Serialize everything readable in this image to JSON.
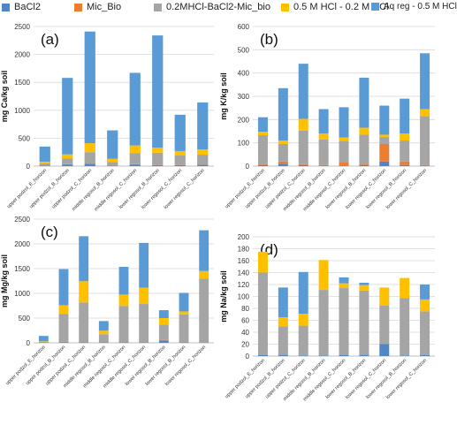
{
  "legend": [
    {
      "name": "BaCl2",
      "color": "#4e86c6"
    },
    {
      "name": "Mic_Bio",
      "color": "#ed7d31"
    },
    {
      "name": "0.2MHCl-BaCl2-Mic_bio",
      "color": "#a5a5a5"
    },
    {
      "name": "0.5 M HCl  - 0.2 M HCl",
      "color": "#ffc000"
    },
    {
      "name": "Aq reg  - 0.5 M HCl",
      "color": "#5b9bd5"
    }
  ],
  "chart_data": [
    {
      "type": "bar",
      "stacked": true,
      "panel_label": "(a)",
      "ylabel": "mg Ca/kg soil",
      "ylim": [
        0,
        2500
      ],
      "yticks": [
        0,
        500,
        1000,
        1500,
        2000,
        2500
      ],
      "categories": [
        "upper podzol_E_horizon",
        "upper podzol_B_horizon",
        "upper podzol_C_horizon",
        "middle regosol_B_horizon",
        "middle regosol_C_horizon",
        "lower regosol_B_horizon",
        "lower regosol_C_horizon",
        "lower regosol_C_horizon"
      ],
      "series": [
        {
          "name": "BaCl2",
          "values": [
            10,
            30,
            40,
            10,
            30,
            20,
            20,
            25
          ]
        },
        {
          "name": "Mic_Bio",
          "values": [
            2,
            5,
            5,
            3,
            5,
            5,
            5,
            5
          ]
        },
        {
          "name": "0.2MHCl-BaCl2-Mic_bio",
          "values": [
            38,
            105,
            205,
            60,
            195,
            215,
            165,
            175
          ]
        },
        {
          "name": "0.5 M HCl  - 0.2 M HCl",
          "values": [
            30,
            70,
            160,
            57,
            140,
            90,
            80,
            95
          ]
        },
        {
          "name": "Aq reg  - 0.5 M HCl",
          "values": [
            270,
            1370,
            2000,
            510,
            1300,
            2010,
            650,
            840
          ]
        }
      ]
    },
    {
      "type": "bar",
      "stacked": true,
      "panel_label": "(b)",
      "ylabel": "mg K/kg soil",
      "ylim": [
        0,
        600
      ],
      "yticks": [
        0,
        100,
        200,
        300,
        400,
        500,
        600
      ],
      "categories": [
        "upper podzol_E_horizon",
        "upper podzol_B_horizon",
        "upper podzol_C_horizon",
        "middle regosol_B_horizon",
        "middle regosol_C_horizon",
        "lower regosol_B_horizon",
        "lower regosol_C_horizon",
        "lower regosol_B_horizon",
        "lower regosol_C_horizon"
      ],
      "series": [
        {
          "name": "BaCl2",
          "values": [
            5,
            10,
            5,
            3,
            3,
            5,
            20,
            5,
            3
          ]
        },
        {
          "name": "Mic_Bio",
          "values": [
            3,
            10,
            3,
            2,
            15,
            5,
            75,
            15,
            2
          ]
        },
        {
          "name": "0.2MHCl-BaCl2-Mic_bio",
          "values": [
            125,
            75,
            145,
            110,
            90,
            125,
            30,
            90,
            210
          ]
        },
        {
          "name": "0.5 M HCl  - 0.2 M HCl",
          "values": [
            15,
            15,
            50,
            25,
            15,
            30,
            10,
            30,
            30
          ]
        },
        {
          "name": "Aq reg  - 0.5 M HCl",
          "values": [
            62,
            225,
            237,
            105,
            130,
            215,
            125,
            150,
            240
          ]
        }
      ]
    },
    {
      "type": "bar",
      "stacked": true,
      "panel_label": "(c)",
      "ylabel": "mg Mg/kg soil",
      "ylim": [
        0,
        2500
      ],
      "yticks": [
        0,
        500,
        1000,
        1500,
        2000,
        2500
      ],
      "categories": [
        "upper podzol_E_horizon",
        "upper podzol_B_horizon",
        "upper podzol_C_horizon",
        "middle regosol_B_horizon",
        "middle regosol_C_horizon",
        "middle regosol_C_horizon",
        "lower regosol_B_horizon",
        "lower regosol_B_horizon",
        "lower regosol_C_horizon"
      ],
      "series": [
        {
          "name": "BaCl2",
          "values": [
            5,
            15,
            10,
            10,
            10,
            10,
            50,
            10,
            5
          ]
        },
        {
          "name": "Mic_Bio",
          "values": [
            2,
            5,
            5,
            5,
            5,
            5,
            10,
            5,
            5
          ]
        },
        {
          "name": "0.2MHCl-BaCl2-Mic_bio",
          "values": [
            13,
            560,
            800,
            160,
            730,
            770,
            310,
            560,
            1290
          ]
        },
        {
          "name": "0.5 M HCl  - 0.2 M HCl",
          "values": [
            10,
            180,
            430,
            70,
            230,
            330,
            130,
            60,
            150
          ]
        },
        {
          "name": "Aq reg  - 0.5 M HCl",
          "values": [
            110,
            730,
            910,
            195,
            560,
            905,
            160,
            375,
            825
          ]
        }
      ]
    },
    {
      "type": "bar",
      "stacked": true,
      "panel_label": "(d)",
      "ylabel": "mg Na/kg soil",
      "ylim": [
        0,
        200
      ],
      "yticks": [
        0,
        20,
        40,
        60,
        80,
        100,
        120,
        140,
        160,
        180,
        200
      ],
      "categories": [
        "upper podzol_E_horizon",
        "upper podzol_B_horizon",
        "upper podzol_C_horizon",
        "middle regosol_B_horizon",
        "middle regosol_C_horizon",
        "lower regosol_B_horizon",
        "lower regosol_C_horizon",
        "lower regosol_B_horizon",
        "lower regosol_C_horizon"
      ],
      "series": [
        {
          "name": "BaCl2",
          "values": [
            2,
            2,
            1,
            1,
            2,
            2,
            20,
            1,
            2
          ]
        },
        {
          "name": "Mic_Bio",
          "values": [
            0,
            0,
            0,
            0,
            0,
            0,
            0,
            0,
            0
          ]
        },
        {
          "name": "0.2MHCl-BaCl2-Mic_bio",
          "values": [
            138,
            48,
            50,
            110,
            112,
            108,
            65,
            96,
            73
          ]
        },
        {
          "name": "0.5 M HCl  - 0.2 M HCl",
          "values": [
            35,
            15,
            20,
            50,
            8,
            9,
            30,
            34,
            20
          ]
        },
        {
          "name": "Aq reg  - 0.5 M HCl",
          "values": [
            0,
            50,
            70,
            0,
            10,
            4,
            0,
            0,
            25
          ]
        }
      ]
    }
  ]
}
